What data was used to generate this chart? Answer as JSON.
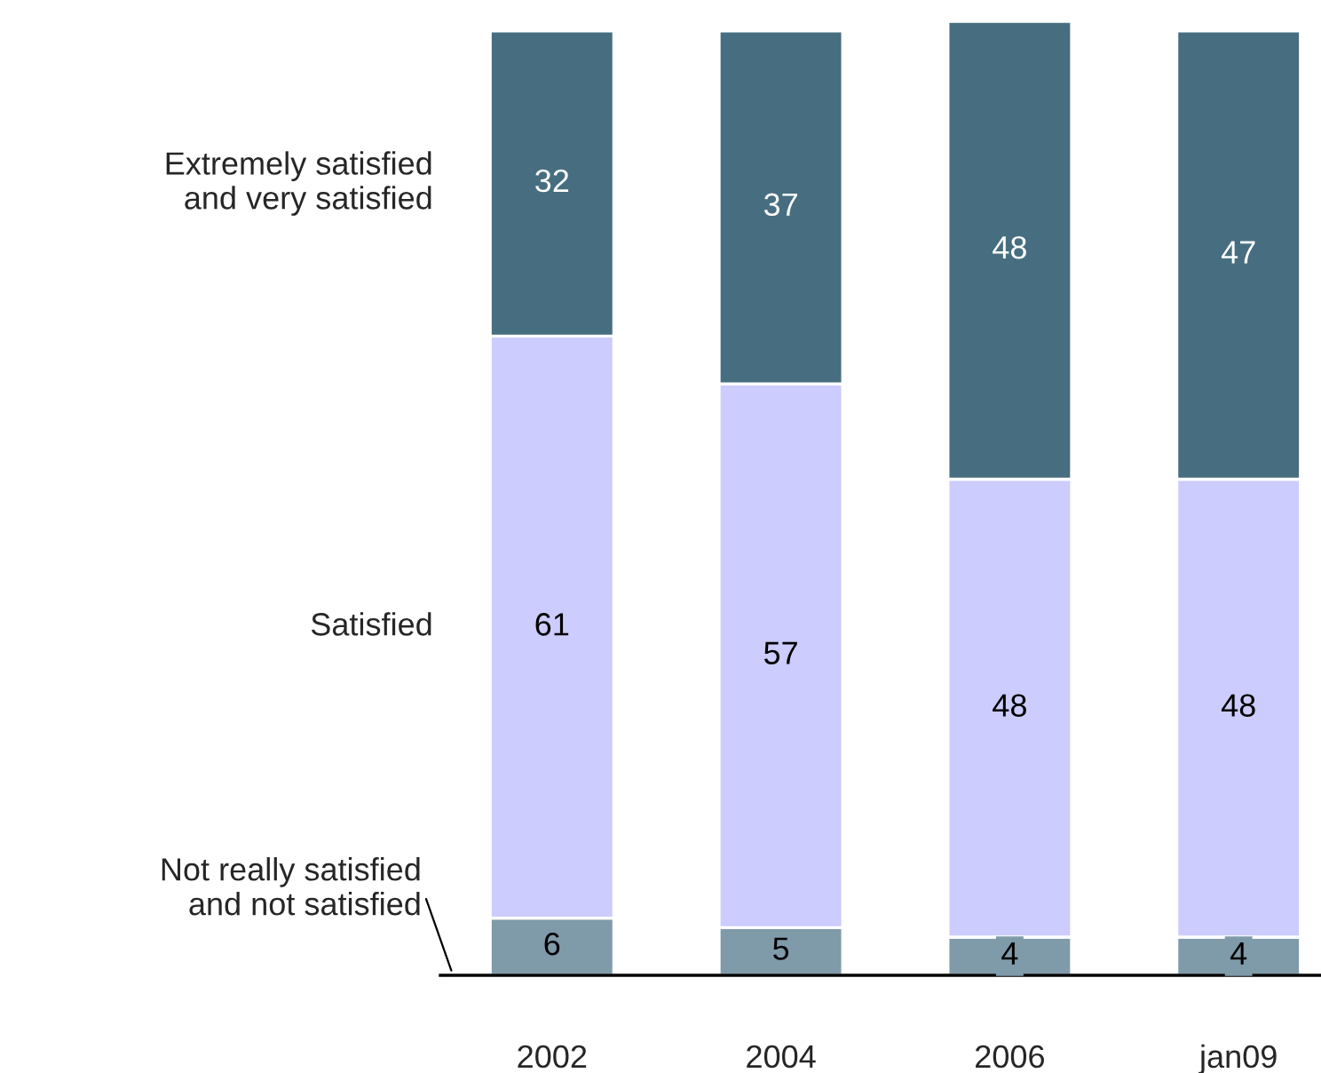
{
  "chart_data": {
    "type": "bar",
    "stacked": true,
    "data_labels": true,
    "legend": "left",
    "categories": [
      "2002",
      "2004",
      "2006",
      "jan09"
    ],
    "series": [
      {
        "name": "Not really satisfied\nand not satisfied",
        "color": "#7f9aa9",
        "values": [
          6,
          5,
          4,
          4
        ]
      },
      {
        "name": "Satisfied",
        "color": "#ccccff",
        "values": [
          61,
          57,
          48,
          48
        ]
      },
      {
        "name": "Extremely satisfied\nand very satisfied",
        "color": "#466e80",
        "values": [
          32,
          37,
          48,
          47
        ]
      }
    ]
  }
}
